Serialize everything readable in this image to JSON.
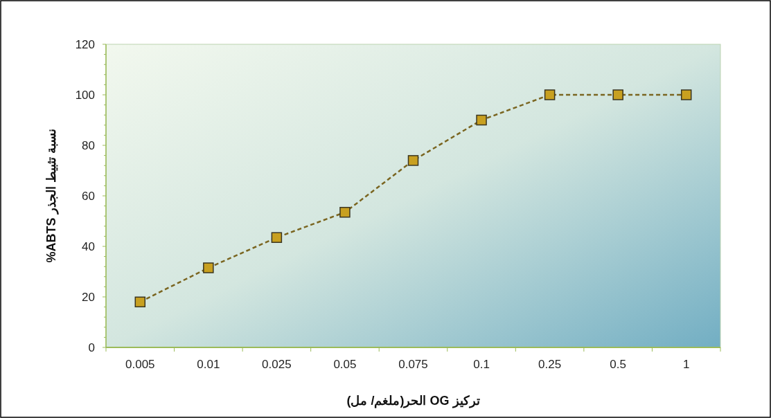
{
  "chart_data": {
    "type": "line",
    "xlabel": "تركيز OG الحر(ملغم/ مل)",
    "ylabel": "نسبة تثبيط الجذر ABTS%",
    "categories": [
      "0.005",
      "0.01",
      "0.025",
      "0.05",
      "0.075",
      "0.1",
      "0.25",
      "0.5",
      "1"
    ],
    "series": [
      {
        "color": "#7a6520",
        "values": [
          18,
          31.5,
          43.5,
          53.5,
          74,
          90,
          100,
          100,
          100
        ]
      }
    ],
    "ylim": [
      0,
      120
    ],
    "yticks": [
      0,
      20,
      40,
      60,
      80,
      100,
      120
    ],
    "grid": false,
    "marker": "square",
    "line_style": "dashed"
  }
}
